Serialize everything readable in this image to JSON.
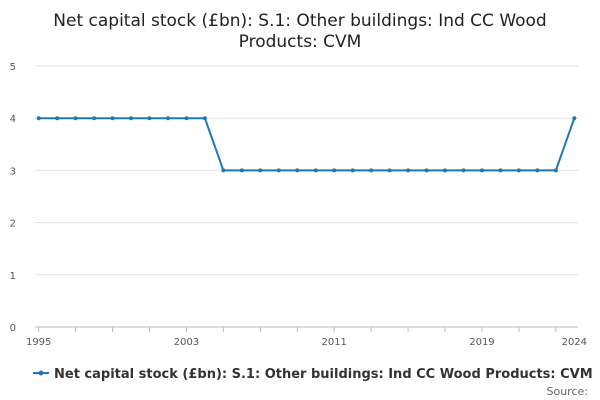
{
  "chart_data": {
    "type": "line",
    "title": "Net capital stock (£bn): S.1: Other buildings: Ind CC Wood Products: CVM",
    "title_lines": [
      "Net capital stock (£bn): S.1: Other buildings: Ind CC Wood",
      "Products: CVM"
    ],
    "xlabel": "",
    "ylabel": "",
    "x": [
      1995,
      1996,
      1997,
      1998,
      1999,
      2000,
      2001,
      2002,
      2003,
      2004,
      2005,
      2006,
      2007,
      2008,
      2009,
      2010,
      2011,
      2012,
      2013,
      2014,
      2015,
      2016,
      2017,
      2018,
      2019,
      2020,
      2021,
      2022,
      2023,
      2024
    ],
    "xlim": [
      1994.8,
      2024.2
    ],
    "ylim": [
      0,
      5
    ],
    "x_ticks": [
      1995,
      2003,
      2011,
      2019,
      2024
    ],
    "y_ticks": [
      0,
      1,
      2,
      3,
      4,
      5
    ],
    "grid": true,
    "series": [
      {
        "name": "Net capital stock (£bn): S.1: Other buildings: Ind CC Wood Products: CVM",
        "color": "#1f78b4",
        "values": [
          4,
          4,
          4,
          4,
          4,
          4,
          4,
          4,
          4,
          4,
          3,
          3,
          3,
          3,
          3,
          3,
          3,
          3,
          3,
          3,
          3,
          3,
          3,
          3,
          3,
          3,
          3,
          3,
          3,
          4
        ]
      }
    ],
    "legend": {
      "position": "bottom",
      "label": "Net capital stock (£bn): S.1: Other buildings: Ind CC Wood Products: CVM"
    },
    "source_label": "Source:"
  },
  "colors": {
    "series": "#1f78b4",
    "grid": "#e3e3e3",
    "axis": "#bbbbbb",
    "title": "#222222"
  }
}
